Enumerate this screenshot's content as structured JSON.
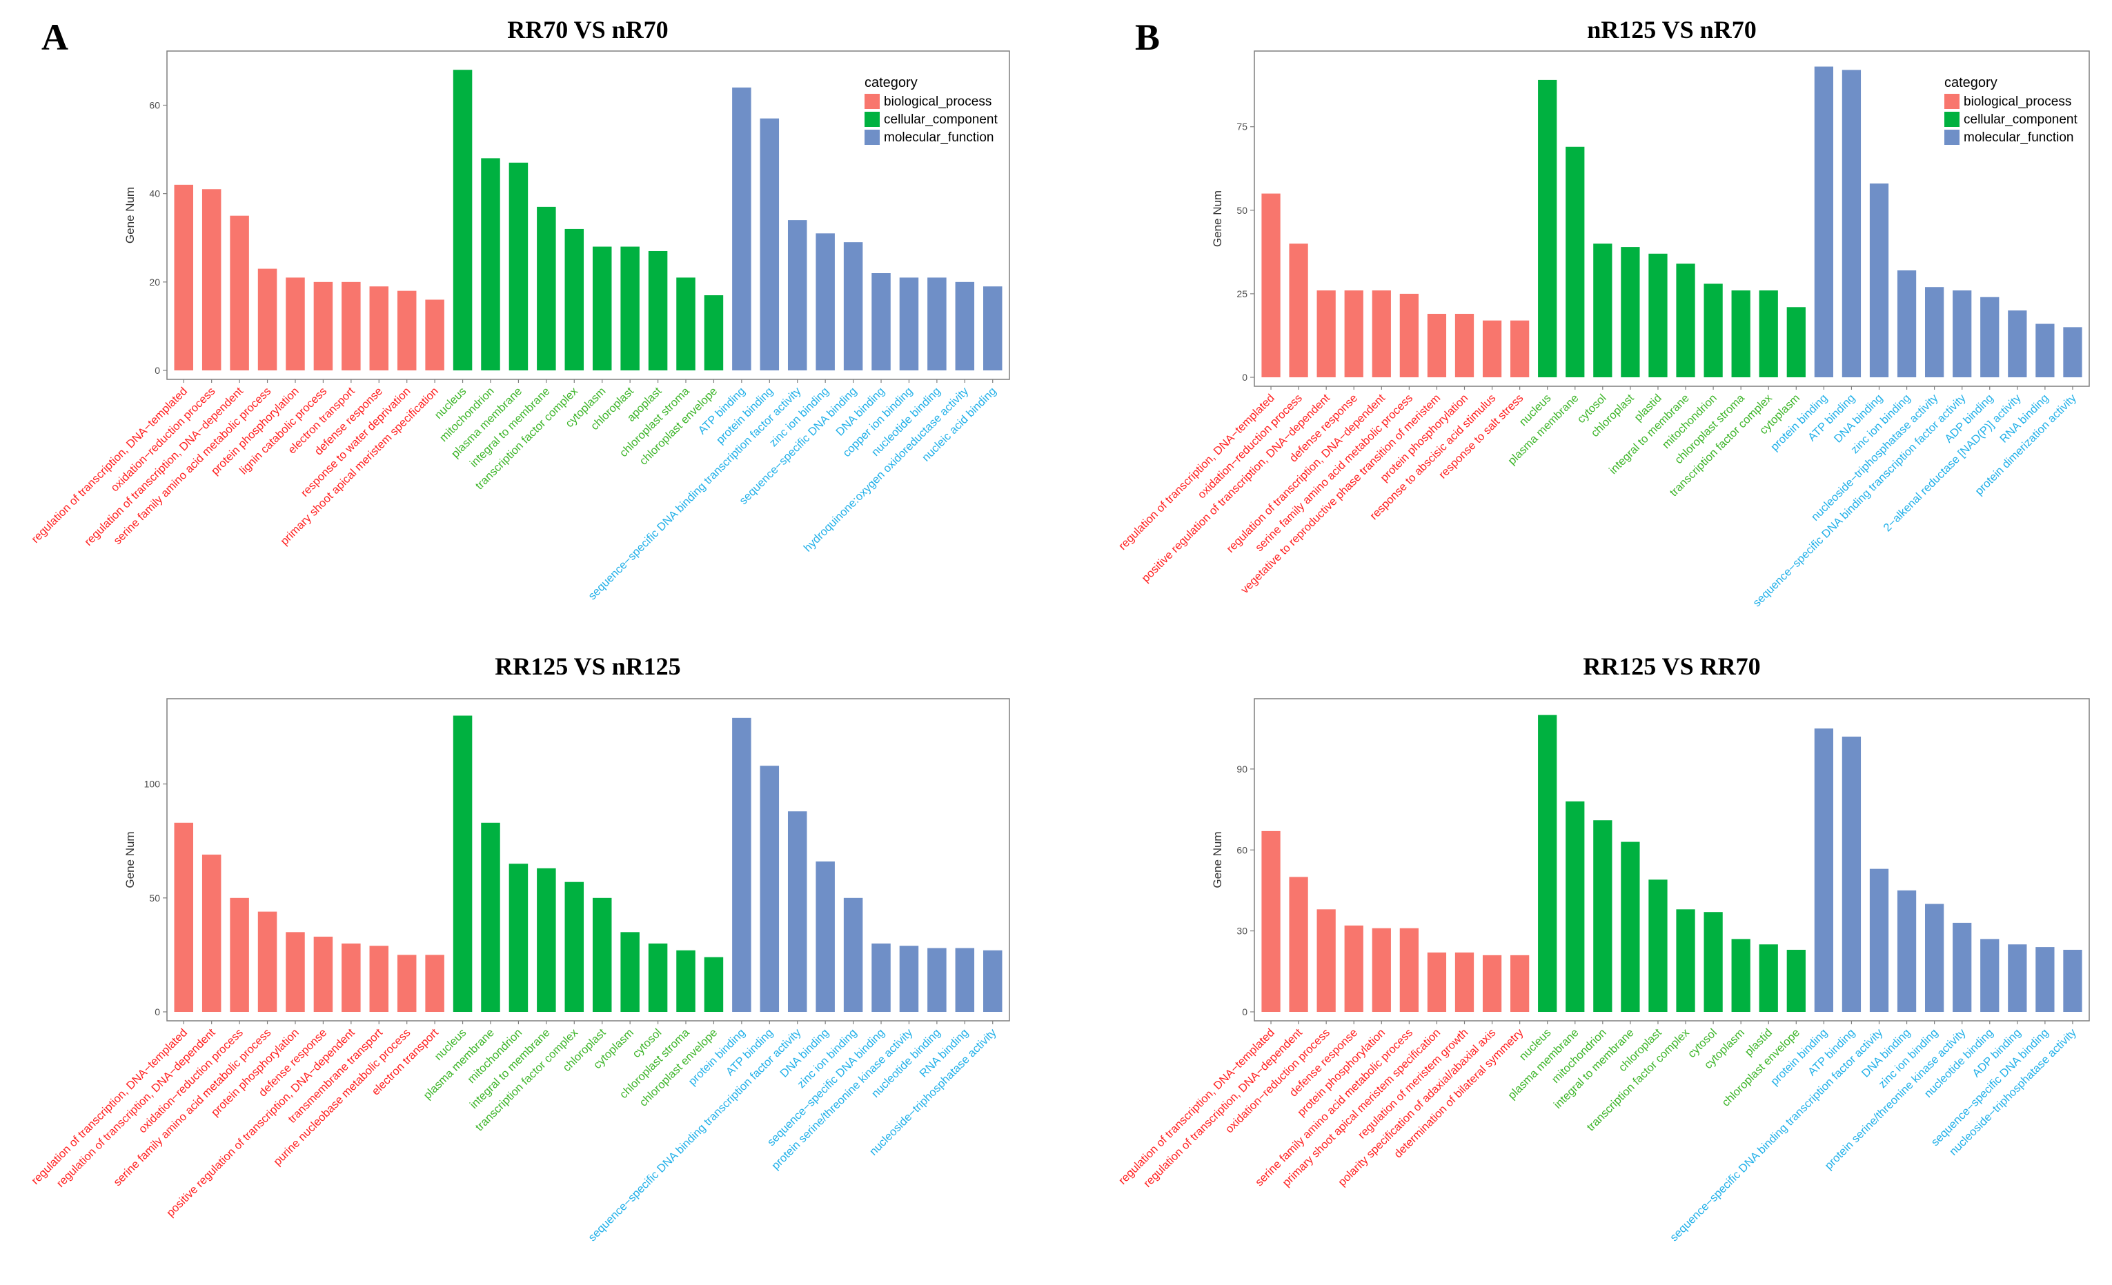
{
  "figure": {
    "panel_labels": [
      "A",
      "B"
    ]
  },
  "legend": {
    "title": "category",
    "entries": [
      {
        "key": "biological_process",
        "label": "biological_process",
        "color": "#F8766D"
      },
      {
        "key": "cellular_component",
        "label": "cellular_component",
        "color": "#00B140"
      },
      {
        "key": "molecular_function",
        "label": "molecular_function",
        "color": "#6F8FC7"
      }
    ]
  },
  "label_colors": {
    "biological_process": "#FF2020",
    "cellular_component": "#3DB52A",
    "molecular_function": "#22B0E8"
  },
  "chart_data": [
    {
      "type": "bar",
      "title": "RR70 VS nR70",
      "ylabel": "Gene Num",
      "xlabel": "",
      "ylim": [
        0,
        71
      ],
      "yticks": [
        0,
        20,
        40,
        60
      ],
      "legend": "top-right",
      "categories": [
        "regulation of transcription, DNA−templated",
        "oxidation−reduction process",
        "regulation of transcription, DNA−dependent",
        "serine family amino acid metabolic process",
        "protein phosphorylation",
        "lignin catabolic process",
        "electron transport",
        "defense response",
        "response to water deprivation",
        "primary shoot apical meristem specification",
        "nucleus",
        "mitochondrion",
        "plasma membrane",
        "integral to membrane",
        "transcription factor complex",
        "cytoplasm",
        "chloroplast",
        "apoplast",
        "chloroplast stroma",
        "chloroplast envelope",
        "ATP binding",
        "protein binding",
        "sequence−specific DNA binding transcription factor activity",
        "zinc ion binding",
        "sequence−specific DNA binding",
        "DNA binding",
        "copper ion binding",
        "nucleotide binding",
        "hydroquinone:oxygen oxidoreductase activity",
        "nucleic acid binding"
      ],
      "values": [
        42,
        41,
        35,
        23,
        21,
        20,
        20,
        19,
        18,
        16,
        68,
        48,
        47,
        37,
        32,
        28,
        28,
        27,
        21,
        17,
        64,
        57,
        34,
        31,
        29,
        22,
        21,
        21,
        20,
        19
      ],
      "groups": [
        "biological_process",
        "biological_process",
        "biological_process",
        "biological_process",
        "biological_process",
        "biological_process",
        "biological_process",
        "biological_process",
        "biological_process",
        "biological_process",
        "cellular_component",
        "cellular_component",
        "cellular_component",
        "cellular_component",
        "cellular_component",
        "cellular_component",
        "cellular_component",
        "cellular_component",
        "cellular_component",
        "cellular_component",
        "molecular_function",
        "molecular_function",
        "molecular_function",
        "molecular_function",
        "molecular_function",
        "molecular_function",
        "molecular_function",
        "molecular_function",
        "molecular_function",
        "molecular_function"
      ]
    },
    {
      "type": "bar",
      "title": "nR125 VS nR70",
      "ylabel": "Gene Num",
      "xlabel": "",
      "ylim": [
        0,
        96
      ],
      "yticks": [
        0,
        25,
        50,
        75
      ],
      "legend": "top-right",
      "categories": [
        "regulation of transcription, DNA−templated",
        "oxidation−reduction process",
        "positive regulation of transcription, DNA−dependent",
        "defense response",
        "regulation of transcription, DNA−dependent",
        "serine family amino acid metabolic process",
        "vegetative to reproductive phase transition of meristem",
        "protein phosphorylation",
        "response to abscisic acid stimulus",
        "response to salt stress",
        "nucleus",
        "plasma membrane",
        "cytosol",
        "chloroplast",
        "plastid",
        "integral to membrane",
        "mitochondrion",
        "chloroplast stroma",
        "transcription factor complex",
        "cytoplasm",
        "protein binding",
        "ATP binding",
        "DNA binding",
        "zinc ion binding",
        "nucleoside−triphosphatase activity",
        "sequence−specific DNA binding transcription factor activity",
        "ADP binding",
        "2−alkenal reductase [NAD(P)] activity",
        "RNA binding",
        "protein dimerization activity"
      ],
      "values": [
        55,
        40,
        26,
        26,
        26,
        25,
        19,
        19,
        17,
        17,
        89,
        69,
        40,
        39,
        37,
        34,
        28,
        26,
        26,
        21,
        93,
        92,
        58,
        32,
        27,
        26,
        24,
        20,
        16,
        15
      ],
      "groups": [
        "biological_process",
        "biological_process",
        "biological_process",
        "biological_process",
        "biological_process",
        "biological_process",
        "biological_process",
        "biological_process",
        "biological_process",
        "biological_process",
        "cellular_component",
        "cellular_component",
        "cellular_component",
        "cellular_component",
        "cellular_component",
        "cellular_component",
        "cellular_component",
        "cellular_component",
        "cellular_component",
        "cellular_component",
        "molecular_function",
        "molecular_function",
        "molecular_function",
        "molecular_function",
        "molecular_function",
        "molecular_function",
        "molecular_function",
        "molecular_function",
        "molecular_function",
        "molecular_function"
      ]
    },
    {
      "type": "bar",
      "title": "RR125 VS nR125",
      "ylabel": "Gene Num",
      "xlabel": "",
      "ylim": [
        0,
        135
      ],
      "yticks": [
        0,
        50,
        100
      ],
      "legend": "none",
      "categories": [
        "regulation of transcription, DNA−templated",
        "regulation of transcription, DNA−dependent",
        "oxidation−reduction process",
        "serine family amino acid metabolic process",
        "protein phosphorylation",
        "defense response",
        "positive regulation of transcription, DNA−dependent",
        "transmembrane transport",
        "purine nucleobase metabolic process",
        "electron transport",
        "nucleus",
        "plasma membrane",
        "mitochondrion",
        "integral to membrane",
        "transcription factor complex",
        "chloroplast",
        "cytoplasm",
        "cytosol",
        "chloroplast stroma",
        "chloroplast envelope",
        "protein binding",
        "ATP binding",
        "sequence−specific DNA binding transcription factor activity",
        "DNA binding",
        "zinc ion binding",
        "sequence−specific DNA binding",
        "protein serine/threonine kinase activity",
        "nucleotide binding",
        "RNA binding",
        "nucleoside−triphosphatase activity"
      ],
      "values": [
        83,
        69,
        50,
        44,
        35,
        33,
        30,
        29,
        25,
        25,
        130,
        83,
        65,
        63,
        57,
        50,
        35,
        30,
        27,
        24,
        129,
        108,
        88,
        66,
        50,
        30,
        29,
        28,
        28,
        27
      ],
      "groups": [
        "biological_process",
        "biological_process",
        "biological_process",
        "biological_process",
        "biological_process",
        "biological_process",
        "biological_process",
        "biological_process",
        "biological_process",
        "biological_process",
        "cellular_component",
        "cellular_component",
        "cellular_component",
        "cellular_component",
        "cellular_component",
        "cellular_component",
        "cellular_component",
        "cellular_component",
        "cellular_component",
        "cellular_component",
        "molecular_function",
        "molecular_function",
        "molecular_function",
        "molecular_function",
        "molecular_function",
        "molecular_function",
        "molecular_function",
        "molecular_function",
        "molecular_function",
        "molecular_function"
      ]
    },
    {
      "type": "bar",
      "title": "RR125 VS RR70",
      "ylabel": "Gene Num",
      "xlabel": "",
      "ylim": [
        0,
        114
      ],
      "yticks": [
        0,
        30,
        60,
        90
      ],
      "legend": "none",
      "categories": [
        "regulation of transcription, DNA−templated",
        "regulation of transcription, DNA−dependent",
        "oxidation−reduction process",
        "defense response",
        "protein phosphorylation",
        "serine family amino acid metabolic process",
        "primary shoot apical meristem specification",
        "regulation of meristem growth",
        "polarity specification of adaxial/abaxial axis",
        "determination of bilateral symmetry",
        "nucleus",
        "plasma membrane",
        "mitochondrion",
        "integral to membrane",
        "chloroplast",
        "transcription factor complex",
        "cytosol",
        "cytoplasm",
        "plastid",
        "chloroplast envelope",
        "protein binding",
        "ATP binding",
        "sequence−specific DNA binding transcription factor activity",
        "DNA binding",
        "zinc ion binding",
        "protein serine/threonine kinase activity",
        "nucleotide binding",
        "ADP binding",
        "sequence−specific DNA binding",
        "nucleoside−triphosphatase activity"
      ],
      "values": [
        67,
        50,
        38,
        32,
        31,
        31,
        22,
        22,
        21,
        21,
        110,
        78,
        71,
        63,
        49,
        38,
        37,
        27,
        25,
        23,
        105,
        102,
        53,
        45,
        40,
        33,
        27,
        25,
        24,
        23
      ],
      "groups": [
        "biological_process",
        "biological_process",
        "biological_process",
        "biological_process",
        "biological_process",
        "biological_process",
        "biological_process",
        "biological_process",
        "biological_process",
        "biological_process",
        "cellular_component",
        "cellular_component",
        "cellular_component",
        "cellular_component",
        "cellular_component",
        "cellular_component",
        "cellular_component",
        "cellular_component",
        "cellular_component",
        "cellular_component",
        "molecular_function",
        "molecular_function",
        "molecular_function",
        "molecular_function",
        "molecular_function",
        "molecular_function",
        "molecular_function",
        "molecular_function",
        "molecular_function",
        "molecular_function"
      ]
    }
  ]
}
